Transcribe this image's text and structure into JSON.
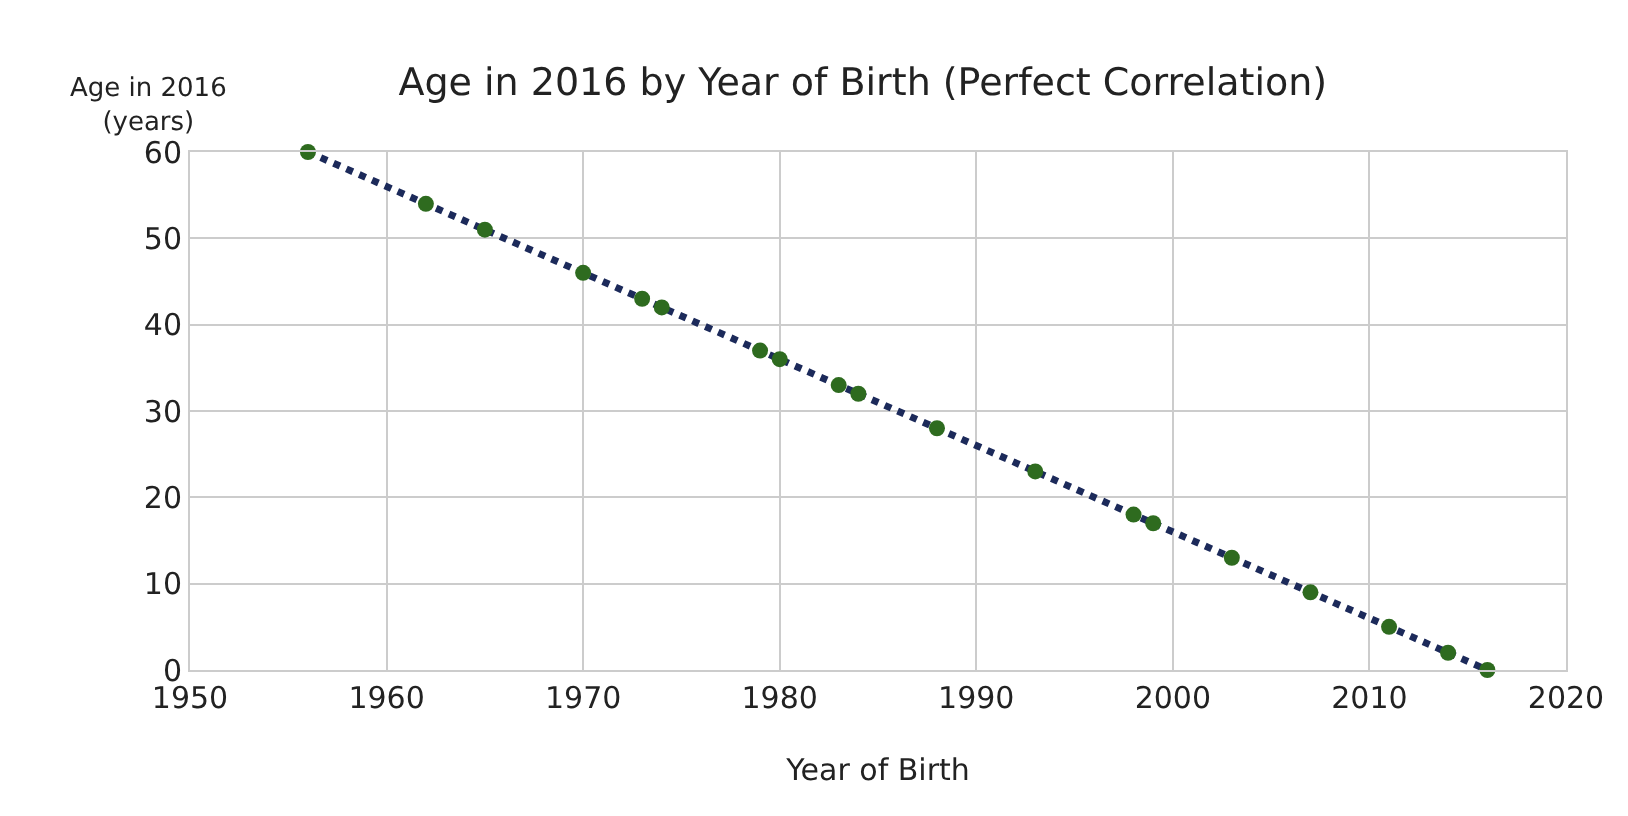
{
  "chart_data": {
    "type": "scatter",
    "title": "Age in 2016 by Year of Birth (Perfect Correlation)",
    "xlabel": "Year of Birth",
    "ylabel": "Age in 2016\n(years)",
    "series": [
      {
        "color": "#2e6b1f",
        "marker": "circle",
        "x": [
          1956,
          1962,
          1965,
          1970,
          1973,
          1974,
          1979,
          1980,
          1983,
          1984,
          1988,
          1993,
          1998,
          1999,
          2003,
          2007,
          2011,
          2014,
          2016
        ],
        "values": [
          60,
          54,
          51,
          46,
          43,
          42,
          37,
          36,
          33,
          32,
          28,
          23,
          18,
          17,
          13,
          9,
          5,
          2,
          0
        ]
      },
      {
        "type": "line",
        "color": "#1c2a5a",
        "line_style": "dotted",
        "x": [
          1956,
          2016
        ],
        "values": [
          60,
          0
        ]
      }
    ],
    "xlim": [
      1950,
      2020
    ],
    "xticks": [
      1950,
      1960,
      1970,
      1980,
      1990,
      2000,
      2010,
      2020
    ],
    "ylim": [
      0,
      60
    ],
    "yticks": [
      0,
      10,
      20,
      30,
      40,
      50,
      60
    ],
    "grid": true,
    "legend": false
  }
}
